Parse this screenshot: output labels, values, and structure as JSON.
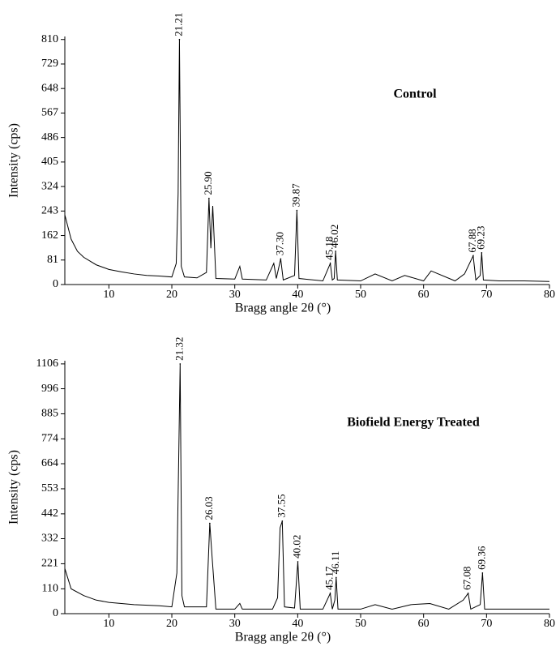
{
  "chart_data": [
    {
      "type": "line",
      "title": "Control",
      "xlabel": "Bragg angle 2θ (°)",
      "ylabel": "Intensity (cps)",
      "xlim": [
        3,
        80
      ],
      "xticks": [
        10,
        20,
        30,
        40,
        50,
        60,
        70,
        80
      ],
      "ylim": [
        0,
        820
      ],
      "yticks": [
        0,
        81,
        162,
        243,
        324,
        405,
        486,
        567,
        648,
        729,
        810
      ],
      "series": [
        {
          "color": "#000000",
          "x": [
            3,
            4,
            5,
            6,
            8,
            10,
            12,
            14,
            16,
            18,
            20,
            20.7,
            21.0,
            21.21,
            21.5,
            22,
            24,
            25.5,
            25.9,
            26.2,
            26.5,
            27,
            30,
            30.8,
            31.2,
            35,
            36.2,
            36.6,
            37.3,
            37.7,
            39.5,
            39.87,
            40.2,
            44,
            45.18,
            45.5,
            45.8,
            46.02,
            46.3,
            50,
            52.3,
            55,
            57,
            60,
            61.2,
            65,
            66.5,
            67.88,
            68.3,
            69.0,
            69.23,
            69.5,
            72,
            76,
            80
          ],
          "values": [
            230,
            150,
            110,
            90,
            65,
            50,
            42,
            35,
            30,
            28,
            25,
            70,
            300,
            810,
            60,
            25,
            22,
            40,
            285,
            120,
            260,
            20,
            18,
            60,
            18,
            15,
            70,
            20,
            85,
            15,
            30,
            245,
            20,
            12,
            70,
            15,
            20,
            110,
            15,
            12,
            35,
            12,
            30,
            12,
            45,
            12,
            35,
            95,
            15,
            30,
            105,
            15,
            12,
            12,
            10
          ]
        }
      ],
      "peaks": {
        "x": [
          21.21,
          25.9,
          37.3,
          39.87,
          45.18,
          46.02,
          67.88,
          69.23
        ],
        "x_labels": [
          "21.21",
          "25.90",
          "37.30",
          "39.87",
          "45.18",
          "46.02",
          "67.88",
          "69.23"
        ],
        "values": [
          810,
          285,
          85,
          245,
          70,
          110,
          95,
          105
        ]
      }
    },
    {
      "type": "line",
      "title": "Biofield Energy Treated",
      "xlabel": "Bragg angle 2θ (°)",
      "ylabel": "Intensity (cps)",
      "xlim": [
        3,
        80
      ],
      "xticks": [
        10,
        20,
        30,
        40,
        50,
        60,
        70,
        80
      ],
      "ylim": [
        0,
        1120
      ],
      "yticks": [
        0,
        110,
        221,
        332,
        442,
        553,
        664,
        774,
        885,
        996,
        1106
      ],
      "series": [
        {
          "color": "#000000",
          "x": [
            3,
            4,
            6,
            8,
            10,
            14,
            18,
            20,
            20.8,
            21.1,
            21.32,
            21.6,
            22,
            25.5,
            26.03,
            26.4,
            27,
            30,
            30.8,
            31.2,
            36,
            36.8,
            37.2,
            37.55,
            37.9,
            39.5,
            40.02,
            40.4,
            44,
            45.17,
            45.5,
            45.9,
            46.11,
            46.4,
            50,
            52.3,
            55,
            58,
            61,
            64,
            66.3,
            67.08,
            67.5,
            69.0,
            69.36,
            69.7,
            72,
            76,
            80
          ],
          "values": [
            200,
            110,
            80,
            60,
            50,
            40,
            35,
            30,
            180,
            700,
            1106,
            80,
            30,
            30,
            400,
            250,
            20,
            20,
            45,
            20,
            20,
            70,
            380,
            410,
            30,
            25,
            230,
            20,
            20,
            90,
            20,
            60,
            160,
            20,
            20,
            40,
            20,
            40,
            45,
            20,
            60,
            90,
            20,
            40,
            180,
            20,
            20,
            20,
            20
          ]
        }
      ],
      "peaks": {
        "x": [
          21.32,
          26.03,
          37.55,
          40.02,
          45.17,
          46.11,
          67.08,
          69.36
        ],
        "x_labels": [
          "21.32",
          "26.03",
          "37.55",
          "40.02",
          "45.17",
          "46.11",
          "67.08",
          "69.36"
        ],
        "values": [
          1106,
          400,
          410,
          230,
          90,
          160,
          90,
          180
        ]
      }
    }
  ]
}
